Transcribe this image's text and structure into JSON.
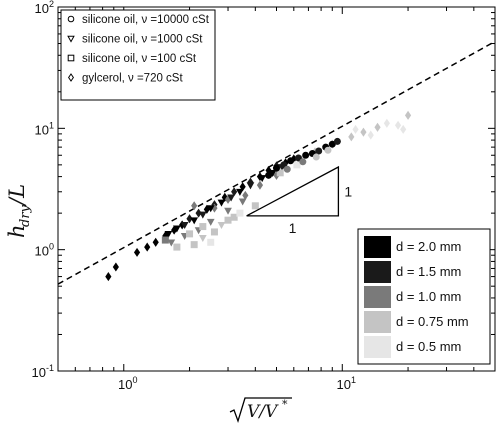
{
  "chart_data": {
    "type": "scatter",
    "xscale": "log",
    "yscale": "log",
    "xlim": [
      0.5,
      50
    ],
    "ylim": [
      0.1,
      100
    ],
    "x_ticks": [
      {
        "base": "10",
        "exp": "0"
      },
      {
        "base": "10",
        "exp": "1"
      }
    ],
    "y_ticks": [
      {
        "base": "10",
        "exp": "-1"
      },
      {
        "base": "10",
        "exp": "0"
      },
      {
        "base": "10",
        "exp": "1"
      },
      {
        "base": "10",
        "exp": "2"
      }
    ],
    "xlabel": "√V/V*",
    "ylabel": "h_dry/L",
    "legend": {
      "placement": "top-left",
      "entries": [
        {
          "marker": "circle",
          "label": "silicone oil, ν =10000 cSt"
        },
        {
          "marker": "triangle-down",
          "label": "silicone oil, ν =1000 cSt"
        },
        {
          "marker": "square",
          "label": "silicone oil, ν =100 cSt"
        },
        {
          "marker": "diamond",
          "label": "gylcerol, ν =720 cSt"
        }
      ]
    },
    "colorbar": {
      "placement": "bottom-right",
      "entries": [
        {
          "label": "d = 2.0 mm",
          "color": "#000000"
        },
        {
          "label": "d = 1.5 mm",
          "color": "#1a1a1a"
        },
        {
          "label": "d = 1.0 mm",
          "color": "#7a7a7a"
        },
        {
          "label": "d = 0.75 mm",
          "color": "#c4c4c4"
        },
        {
          "label": "d = 0.5 mm",
          "color": "#e6e6e6"
        }
      ]
    },
    "fit_line": {
      "style": "dashed",
      "slope": 1,
      "points": [
        [
          0.5,
          0.52
        ],
        [
          50,
          52
        ]
      ]
    },
    "slope_triangle": {
      "x": [
        3.65,
        9.6
      ],
      "y": [
        1.9,
        4.8
      ],
      "run_label": "1",
      "rise_label": "1"
    },
    "series": [
      {
        "name": "gylcerol, ν =720 cSt",
        "marker": "diamond",
        "points": [
          [
            0.85,
            0.6,
            "#000000"
          ],
          [
            0.92,
            0.72,
            "#000000"
          ],
          [
            1.15,
            0.95,
            "#000000"
          ],
          [
            1.28,
            1.05,
            "#000000"
          ],
          [
            1.4,
            1.15,
            "#000000"
          ],
          [
            1.55,
            1.3,
            "#000000"
          ],
          [
            1.7,
            1.45,
            "#000000"
          ],
          [
            1.85,
            1.6,
            "#000000"
          ],
          [
            2.0,
            1.8,
            "#1a1a1a"
          ],
          [
            2.2,
            2.0,
            "#1a1a1a"
          ],
          [
            2.4,
            2.15,
            "#000000"
          ],
          [
            2.6,
            2.35,
            "#1a1a1a"
          ],
          [
            2.9,
            2.7,
            "#000000"
          ],
          [
            3.2,
            3.0,
            "#1a1a1a"
          ],
          [
            3.5,
            3.3,
            "#000000"
          ],
          [
            3.8,
            3.6,
            "#1a1a1a"
          ],
          [
            4.2,
            4.0,
            "#000000"
          ],
          [
            4.6,
            4.5,
            "#000000"
          ],
          [
            5.0,
            4.9,
            "#1a1a1a"
          ],
          [
            5.5,
            5.2,
            "#000000"
          ],
          [
            6.0,
            5.6,
            "#000000"
          ],
          [
            2.1,
            2.3,
            "#7a7a7a"
          ],
          [
            2.6,
            2.2,
            "#7a7a7a"
          ],
          [
            3.0,
            2.6,
            "#7a7a7a"
          ],
          [
            3.6,
            2.8,
            "#7a7a7a"
          ],
          [
            4.2,
            3.4,
            "#7a7a7a"
          ],
          [
            5.0,
            4.1,
            "#7a7a7a"
          ],
          [
            6.5,
            5.5,
            "#c4c4c4"
          ],
          [
            7.5,
            6.4,
            "#c4c4c4"
          ],
          [
            9.0,
            7.4,
            "#c4c4c4"
          ],
          [
            11.0,
            8.5,
            "#c4c4c4"
          ],
          [
            12.5,
            9.3,
            "#c4c4c4"
          ],
          [
            14.5,
            10.2,
            "#c4c4c4"
          ],
          [
            16.0,
            11.0,
            "#e6e6e6"
          ],
          [
            18.0,
            10.6,
            "#e6e6e6"
          ],
          [
            20.0,
            12.8,
            "#c4c4c4"
          ],
          [
            19.0,
            9.8,
            "#e6e6e6"
          ],
          [
            11.5,
            9.8,
            "#e6e6e6"
          ],
          [
            13.5,
            8.8,
            "#e6e6e6"
          ]
        ]
      },
      {
        "name": "silicone oil, ν =1000 cSt",
        "marker": "triangle-down",
        "points": [
          [
            1.6,
            1.35,
            "#000000"
          ],
          [
            1.75,
            1.5,
            "#000000"
          ],
          [
            1.9,
            1.6,
            "#1a1a1a"
          ],
          [
            2.1,
            1.75,
            "#000000"
          ],
          [
            2.3,
            1.95,
            "#1a1a1a"
          ],
          [
            2.5,
            2.2,
            "#000000"
          ],
          [
            2.8,
            2.45,
            "#000000"
          ],
          [
            3.1,
            2.7,
            "#1a1a1a"
          ],
          [
            3.4,
            3.0,
            "#000000"
          ],
          [
            3.8,
            3.4,
            "#1a1a1a"
          ],
          [
            4.3,
            3.9,
            "#000000"
          ],
          [
            4.8,
            4.3,
            "#000000"
          ],
          [
            5.3,
            4.8,
            "#1a1a1a"
          ],
          [
            1.65,
            1.15,
            "#7a7a7a"
          ],
          [
            1.9,
            1.3,
            "#7a7a7a"
          ],
          [
            2.2,
            1.45,
            "#7a7a7a"
          ],
          [
            2.5,
            1.7,
            "#7a7a7a"
          ],
          [
            3.0,
            2.1,
            "#7a7a7a"
          ],
          [
            3.5,
            2.5,
            "#7a7a7a"
          ],
          [
            2.3,
            1.25,
            "#c4c4c4"
          ],
          [
            2.8,
            1.6,
            "#c4c4c4"
          ]
        ]
      },
      {
        "name": "silicone oil, ν =100 cSt",
        "marker": "square",
        "points": [
          [
            1.55,
            1.2,
            "#7a7a7a"
          ],
          [
            1.75,
            1.05,
            "#c4c4c4"
          ],
          [
            2.0,
            1.35,
            "#c4c4c4"
          ],
          [
            2.3,
            1.55,
            "#c4c4c4"
          ],
          [
            2.6,
            1.4,
            "#c4c4c4"
          ],
          [
            3.0,
            1.75,
            "#c4c4c4"
          ],
          [
            3.2,
            1.85,
            "#c4c4c4"
          ],
          [
            2.5,
            1.15,
            "#e6e6e6"
          ],
          [
            3.4,
            2.0,
            "#e6e6e6"
          ],
          [
            4.0,
            2.3,
            "#c4c4c4"
          ],
          [
            2.1,
            1.1,
            "#c4c4c4"
          ],
          [
            5.2,
            4.3,
            "#c4c4c4"
          ],
          [
            6.2,
            5.0,
            "#e6e6e6"
          ]
        ]
      },
      {
        "name": "silicone oil, ν =10000 cSt",
        "marker": "circle",
        "points": [
          [
            4.6,
            4.1,
            "#000000"
          ],
          [
            5.0,
            4.7,
            "#000000"
          ],
          [
            5.4,
            5.0,
            "#1a1a1a"
          ],
          [
            5.8,
            5.4,
            "#000000"
          ],
          [
            6.3,
            5.7,
            "#1a1a1a"
          ],
          [
            6.8,
            6.0,
            "#000000"
          ],
          [
            7.3,
            6.2,
            "#000000"
          ],
          [
            7.8,
            6.5,
            "#1a1a1a"
          ],
          [
            8.4,
            7.0,
            "#000000"
          ],
          [
            9.0,
            7.4,
            "#000000"
          ],
          [
            5.6,
            4.6,
            "#7a7a7a"
          ],
          [
            6.6,
            5.3,
            "#7a7a7a"
          ],
          [
            7.6,
            5.8,
            "#c4c4c4"
          ],
          [
            8.6,
            6.6,
            "#c4c4c4"
          ],
          [
            9.5,
            7.8,
            "#1a1a1a"
          ]
        ]
      }
    ]
  }
}
